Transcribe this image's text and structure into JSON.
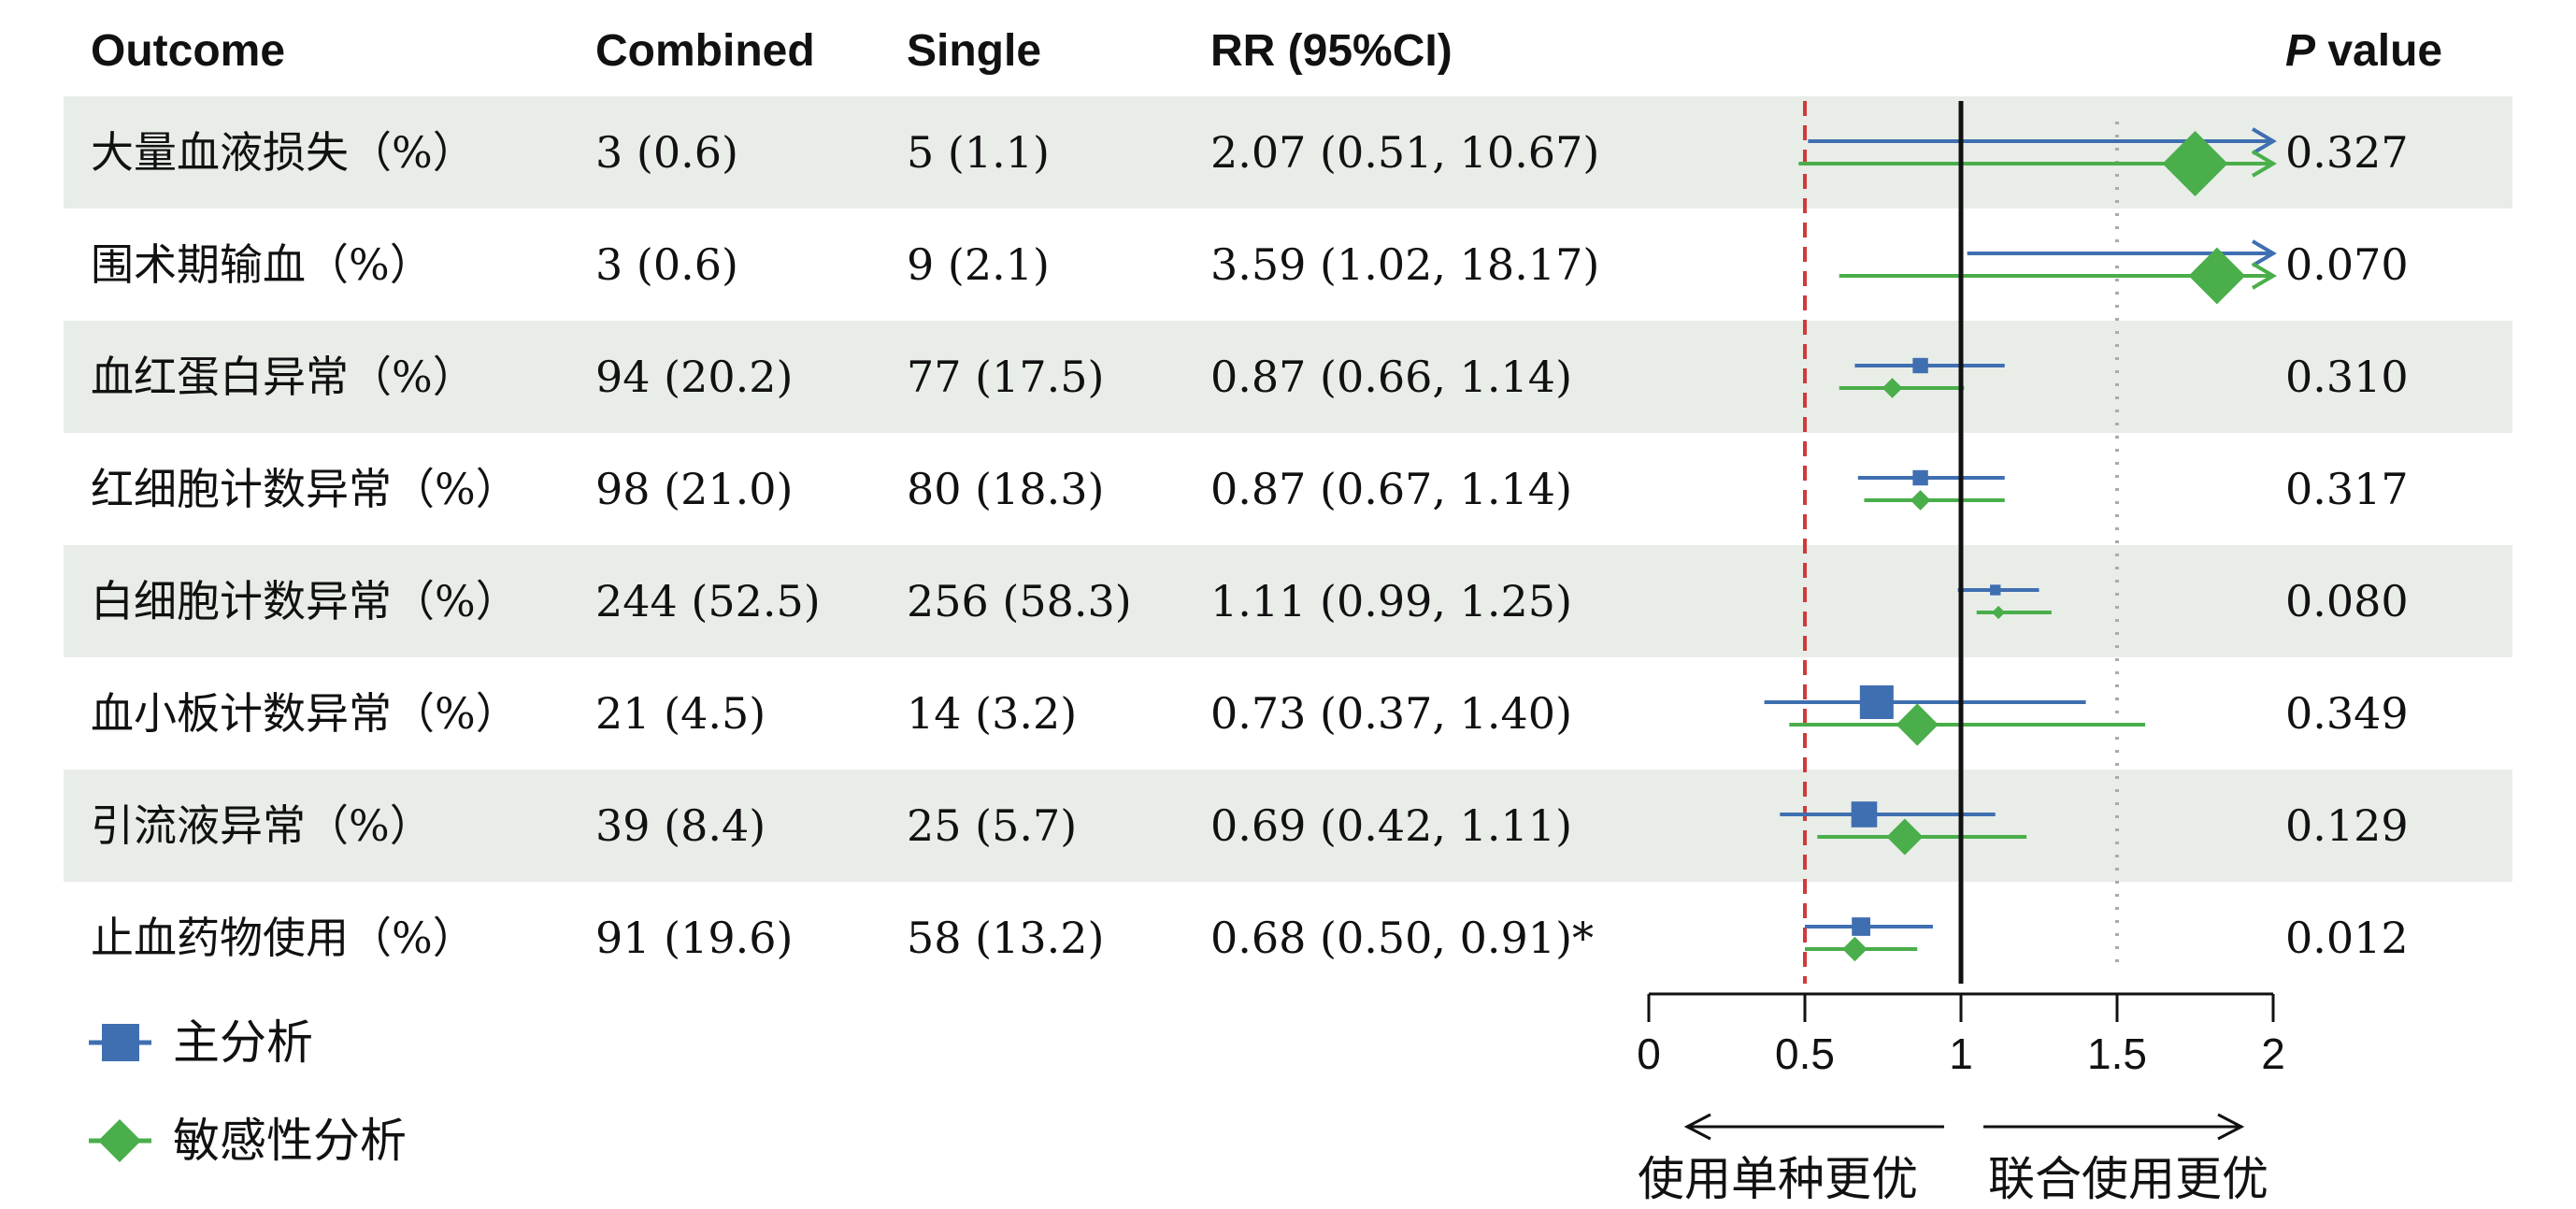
{
  "columns": {
    "outcome": "Outcome",
    "combined": "Combined",
    "single": "Single",
    "rr": "RR (95%CI)",
    "p_italic": "P",
    "p_rest": " value"
  },
  "rows": [
    {
      "outcome": "大量血液损失（%）",
      "combined": "3 (0.6)",
      "single": "5 (1.1)",
      "rr": "2.07 (0.51, 10.67)",
      "p": "0.327"
    },
    {
      "outcome": "围术期输血（%）",
      "combined": "3 (0.6)",
      "single": "9 (2.1)",
      "rr": "3.59 (1.02, 18.17)",
      "p": "0.070"
    },
    {
      "outcome": "血红蛋白异常（%）",
      "combined": "94 (20.2)",
      "single": "77 (17.5)",
      "rr": "0.87 (0.66, 1.14)",
      "p": "0.310"
    },
    {
      "outcome": "红细胞计数异常（%）",
      "combined": "98 (21.0)",
      "single": "80 (18.3)",
      "rr": "0.87 (0.67, 1.14)",
      "p": "0.317"
    },
    {
      "outcome": "白细胞计数异常（%）",
      "combined": "244 (52.5)",
      "single": "256 (58.3)",
      "rr": "1.11 (0.99, 1.25)",
      "p": "0.080"
    },
    {
      "outcome": "血小板计数异常（%）",
      "combined": "21 (4.5)",
      "single": "14 (3.2)",
      "rr": "0.73 (0.37, 1.40)",
      "p": "0.349"
    },
    {
      "outcome": "引流液异常（%）",
      "combined": "39 (8.4)",
      "single": "25 (5.7)",
      "rr": "0.69 (0.42, 1.11)",
      "p": "0.129"
    },
    {
      "outcome": "止血药物使用（%）",
      "combined": "91 (19.6)",
      "single": "58 (13.2)",
      "rr": "0.68 (0.50, 0.91)*",
      "p": "0.012"
    }
  ],
  "legend": [
    {
      "label": "主分析",
      "marker": "square",
      "color": "#3F6FB1"
    },
    {
      "label": "敏感性分析",
      "marker": "diamond",
      "color": "#4AAE4A"
    }
  ],
  "direction_labels": {
    "left": "使用单种更优",
    "right": "联合使用更优"
  },
  "colors": {
    "primary": "#3F6FB1",
    "sensitivity": "#4AAE4A",
    "stripe": "#E8EDE8",
    "threshold_line": "#D03A3A",
    "ref_line": "#111111",
    "dotted_line": "#AAAAAA"
  },
  "chart_data": {
    "type": "forest",
    "xlim": [
      0,
      2
    ],
    "ticks": [
      "0",
      "0.5",
      "1",
      "1.5",
      "2"
    ],
    "tick_values": [
      0,
      0.5,
      1,
      1.5,
      2
    ],
    "reference_line": 1,
    "dashed_line": 0.5,
    "dotted_line": 1.5,
    "series": [
      {
        "name": "主分析",
        "marker": "square",
        "points": [
          {
            "est": 2.07,
            "lo": 0.51,
            "hi": 10.67,
            "weight": 0
          },
          {
            "est": 3.59,
            "lo": 1.02,
            "hi": 18.17,
            "weight": 0
          },
          {
            "est": 0.87,
            "lo": 0.66,
            "hi": 1.14,
            "weight": 0.3
          },
          {
            "est": 0.87,
            "lo": 0.67,
            "hi": 1.14,
            "weight": 0.3
          },
          {
            "est": 1.11,
            "lo": 0.99,
            "hi": 1.25,
            "weight": 0.12
          },
          {
            "est": 0.73,
            "lo": 0.37,
            "hi": 1.4,
            "weight": 1.0
          },
          {
            "est": 0.69,
            "lo": 0.42,
            "hi": 1.11,
            "weight": 0.7
          },
          {
            "est": 0.68,
            "lo": 0.5,
            "hi": 0.91,
            "weight": 0.42
          }
        ]
      },
      {
        "name": "敏感性分析",
        "marker": "diamond",
        "points": [
          {
            "est": 1.75,
            "lo": 0.48,
            "hi": 10.0,
            "weight": 1.0
          },
          {
            "est": 1.82,
            "lo": 0.61,
            "hi": 10.0,
            "weight": 0.85
          },
          {
            "est": 0.78,
            "lo": 0.61,
            "hi": 1.01,
            "weight": 0.22
          },
          {
            "est": 0.87,
            "lo": 0.69,
            "hi": 1.14,
            "weight": 0.22
          },
          {
            "est": 1.12,
            "lo": 1.05,
            "hi": 1.29,
            "weight": 0.1
          },
          {
            "est": 0.86,
            "lo": 0.45,
            "hi": 1.59,
            "weight": 0.6
          },
          {
            "est": 0.82,
            "lo": 0.54,
            "hi": 1.21,
            "weight": 0.5
          },
          {
            "est": 0.66,
            "lo": 0.5,
            "hi": 0.86,
            "weight": 0.3
          }
        ]
      }
    ]
  }
}
